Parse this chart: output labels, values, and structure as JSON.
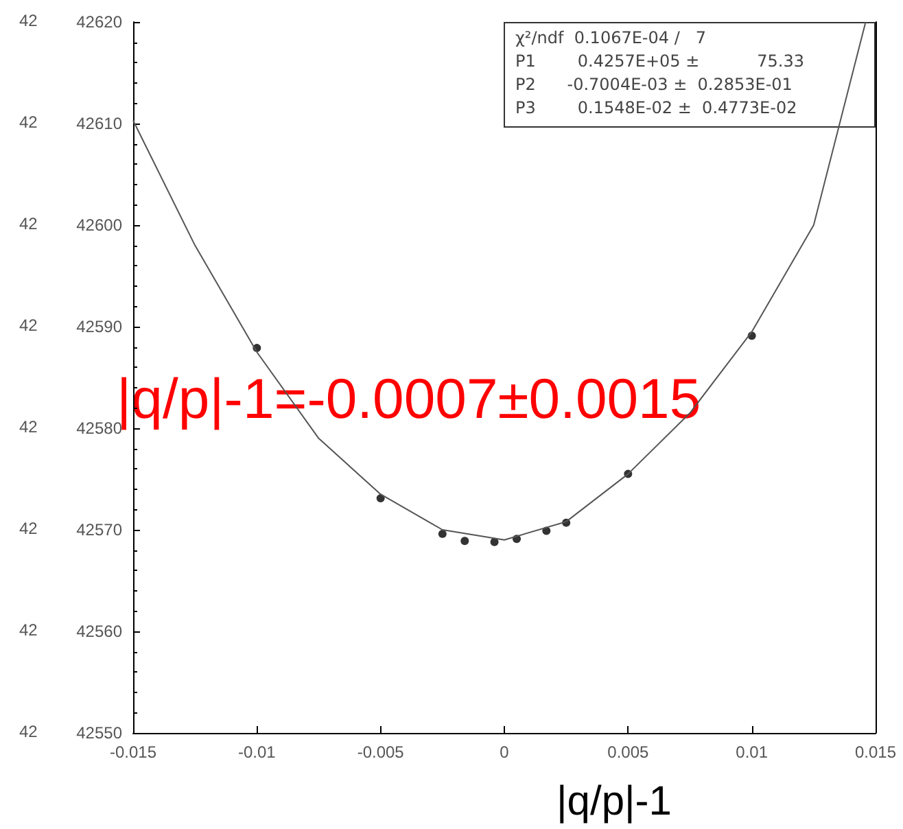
{
  "chart_data": {
    "type": "scatter",
    "xlabel": "|q/p|-1",
    "annotations": [
      "χ²/ndf  0.1067E-04 /   7",
      "P1        0.4257E+05 ±           75.33",
      "P2      -0.7004E-03 ±  0.2853E-01",
      "P3        0.1548E-02 ±  0.4773E-02",
      "|q/p|-1=-0.0007±0.0015",
      "42",
      "42",
      "42",
      "42",
      "42",
      "42",
      "42",
      "42"
    ],
    "series": [
      {
        "color": "#000000",
        "x": [
          -0.01,
          -0.005,
          -0.0025,
          -0.0016,
          -0.0004,
          0.0005,
          0.0017,
          0.0025,
          0.005,
          0.01
        ],
        "values": [
          42587.9,
          42573.1,
          42569.6,
          42568.9,
          42568.8,
          42569.1,
          42569.9,
          42570.7,
          42575.5,
          42589.1
        ]
      },
      {
        "type": "line",
        "color": "#555555",
        "marker": "none",
        "x": [
          -0.015,
          -0.0125,
          -0.01,
          -0.0075,
          -0.005,
          -0.0025,
          0,
          0.0025,
          0.005,
          0.0075,
          0.01,
          0.0125,
          0.0146
        ],
        "values": [
          42610.3,
          42598,
          42587.5,
          42579,
          42573.5,
          42570,
          42569,
          42570.8,
          42575.5,
          42581.5,
          42589.5,
          42600,
          42620
        ]
      }
    ],
    "xlim": [
      -0.015,
      0.015
    ],
    "xticks": [
      -0.015,
      -0.01,
      -0.005,
      0,
      0.005,
      0.01,
      0.015
    ],
    "ylim": [
      42550,
      42620
    ],
    "yticks": [
      42550,
      42560,
      42570,
      42580,
      42590,
      42600,
      42610,
      42620
    ],
    "marker": "circle",
    "grid": false
  }
}
